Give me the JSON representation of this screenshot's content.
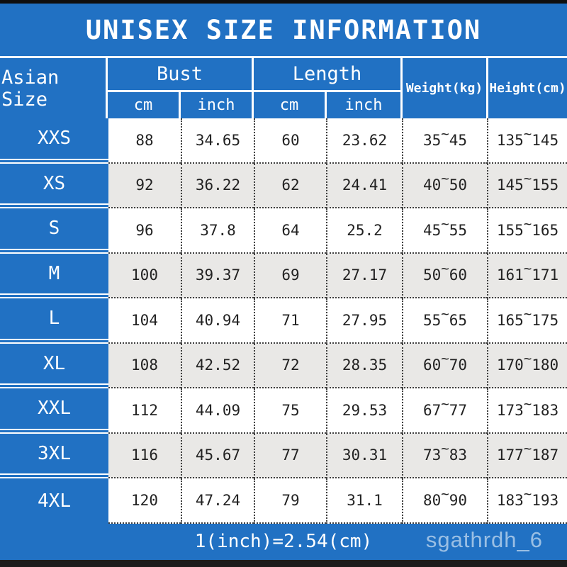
{
  "title": "UNISEX SIZE INFORMATION",
  "colors": {
    "accent_blue": "#2171c3",
    "row_alt_gray": "#e9e8e6",
    "top_bar_black": "#0f0f0f",
    "bottom_bar_black": "#1c1c1c",
    "text_dark": "#222222",
    "watermark_text": "rgba(255,255,255,0.55)"
  },
  "symbols": {
    "tilde": "~"
  },
  "header": {
    "corner": "Asian Size",
    "bust": "Bust",
    "length": "Length",
    "weight": "Weight(kg)",
    "height": "Height(cm)",
    "sub_cm": "cm",
    "sub_inch": "inch"
  },
  "table": {
    "rows": [
      {
        "size": "XXS",
        "bust_cm": "88",
        "bust_inch": "34.65",
        "length_cm": "60",
        "length_inch": "23.62",
        "weight_min": "35",
        "weight_max": "45",
        "height_min": "135",
        "height_max": "145"
      },
      {
        "size": "XS",
        "bust_cm": "92",
        "bust_inch": "36.22",
        "length_cm": "62",
        "length_inch": "24.41",
        "weight_min": "40",
        "weight_max": "50",
        "height_min": "145",
        "height_max": "155"
      },
      {
        "size": "S",
        "bust_cm": "96",
        "bust_inch": "37.8",
        "length_cm": "64",
        "length_inch": "25.2",
        "weight_min": "45",
        "weight_max": "55",
        "height_min": "155",
        "height_max": "165"
      },
      {
        "size": "M",
        "bust_cm": "100",
        "bust_inch": "39.37",
        "length_cm": "69",
        "length_inch": "27.17",
        "weight_min": "50",
        "weight_max": "60",
        "height_min": "161",
        "height_max": "171"
      },
      {
        "size": "L",
        "bust_cm": "104",
        "bust_inch": "40.94",
        "length_cm": "71",
        "length_inch": "27.95",
        "weight_min": "55",
        "weight_max": "65",
        "height_min": "165",
        "height_max": "175"
      },
      {
        "size": "XL",
        "bust_cm": "108",
        "bust_inch": "42.52",
        "length_cm": "72",
        "length_inch": "28.35",
        "weight_min": "60",
        "weight_max": "70",
        "height_min": "170",
        "height_max": "180"
      },
      {
        "size": "XXL",
        "bust_cm": "112",
        "bust_inch": "44.09",
        "length_cm": "75",
        "length_inch": "29.53",
        "weight_min": "67",
        "weight_max": "77",
        "height_min": "173",
        "height_max": "183"
      },
      {
        "size": "3XL",
        "bust_cm": "116",
        "bust_inch": "45.67",
        "length_cm": "77",
        "length_inch": "30.31",
        "weight_min": "73",
        "weight_max": "83",
        "height_min": "177",
        "height_max": "187"
      },
      {
        "size": "4XL",
        "bust_cm": "120",
        "bust_inch": "47.24",
        "length_cm": "79",
        "length_inch": "31.1",
        "weight_min": "80",
        "weight_max": "90",
        "height_min": "183",
        "height_max": "193"
      }
    ]
  },
  "footer": {
    "note": "1(inch)=2.54(cm)",
    "watermark": "sgathrdh_6"
  },
  "chart_data": {
    "type": "table",
    "title": "UNISEX SIZE INFORMATION",
    "column_groups": [
      {
        "label": "Bust",
        "columns": [
          "cm",
          "inch"
        ]
      },
      {
        "label": "Length",
        "columns": [
          "cm",
          "inch"
        ]
      }
    ],
    "columns": [
      "Asian Size",
      "Bust (cm)",
      "Bust (inch)",
      "Length (cm)",
      "Length (inch)",
      "Weight (kg)",
      "Height (cm)"
    ],
    "rows": [
      [
        "XXS",
        "88",
        "34.65",
        "60",
        "23.62",
        "35~45",
        "135~145"
      ],
      [
        "XS",
        "92",
        "36.22",
        "62",
        "24.41",
        "40~50",
        "145~155"
      ],
      [
        "S",
        "96",
        "37.8",
        "64",
        "25.2",
        "45~55",
        "155~165"
      ],
      [
        "M",
        "100",
        "39.37",
        "69",
        "27.17",
        "50~60",
        "161~171"
      ],
      [
        "L",
        "104",
        "40.94",
        "71",
        "27.95",
        "55~65",
        "165~175"
      ],
      [
        "XL",
        "108",
        "42.52",
        "72",
        "28.35",
        "60~70",
        "170~180"
      ],
      [
        "XXL",
        "112",
        "44.09",
        "75",
        "29.53",
        "67~77",
        "173~183"
      ],
      [
        "3XL",
        "116",
        "45.67",
        "77",
        "30.31",
        "73~83",
        "177~187"
      ],
      [
        "4XL",
        "120",
        "47.24",
        "79",
        "31.1",
        "80~90",
        "183~193"
      ]
    ],
    "footnote": "1(inch)=2.54(cm)"
  }
}
